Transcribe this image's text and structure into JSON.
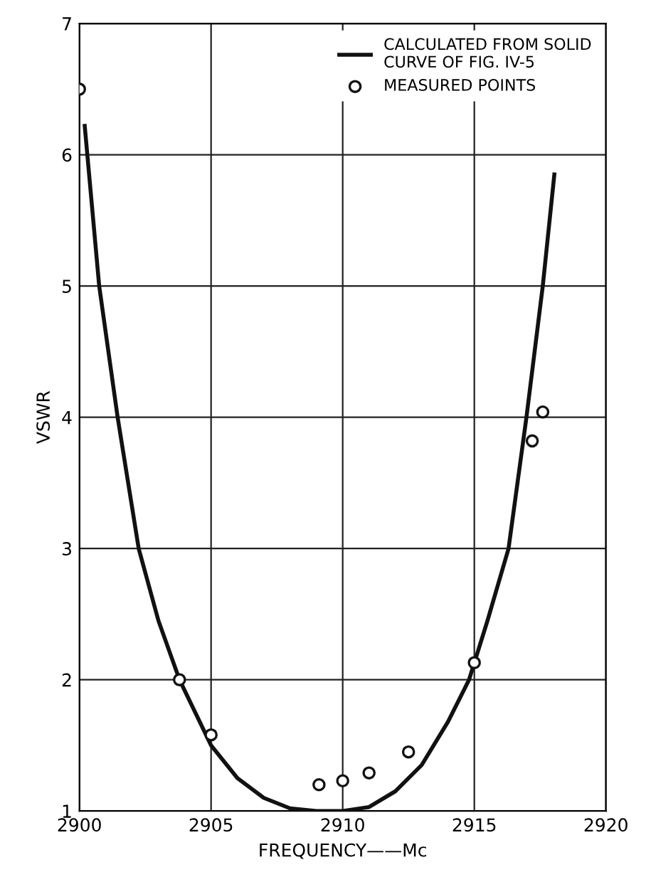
{
  "chart_data": {
    "type": "line",
    "xlabel": "FREQUENCY——Mc",
    "ylabel": "VSWR",
    "series": [
      {
        "name": "CALCULATED FROM SOLID\nCURVE OF FIG. IV-5",
        "color": "#111111",
        "marker": "none",
        "x": [
          2900.2,
          2900.75,
          2901.45,
          2902.25,
          2903,
          2903.8,
          2905,
          2906,
          2907,
          2908,
          2909,
          2910,
          2911,
          2912,
          2913,
          2914,
          2914.8,
          2915.5,
          2916.3,
          2916.98,
          2917.6,
          2918.04
        ],
        "values": [
          6.22,
          5.0,
          4.0,
          3.0,
          2.45,
          2.0,
          1.5,
          1.25,
          1.1,
          1.02,
          1.0,
          1.0,
          1.03,
          1.15,
          1.35,
          1.68,
          2.0,
          2.45,
          3.0,
          4.0,
          5.0,
          5.85
        ]
      },
      {
        "name": "MEASURED POINTS",
        "type": "scatter",
        "color": "#111111",
        "marker": "circle",
        "x": [
          2900,
          2903.8,
          2905,
          2909.1,
          2910,
          2911,
          2912.5,
          2915,
          2917.2,
          2917.6
        ],
        "values": [
          6.5,
          2.0,
          1.58,
          1.2,
          1.23,
          1.29,
          1.45,
          2.13,
          3.82,
          4.04
        ]
      }
    ],
    "xlim": [
      2900,
      2920
    ],
    "xticks": [
      2900,
      2905,
      2910,
      2915,
      2920
    ],
    "ylim": [
      1,
      7
    ],
    "yticks": [
      1,
      2,
      3,
      4,
      5,
      6,
      7
    ],
    "grid": true,
    "legend": "top right"
  }
}
